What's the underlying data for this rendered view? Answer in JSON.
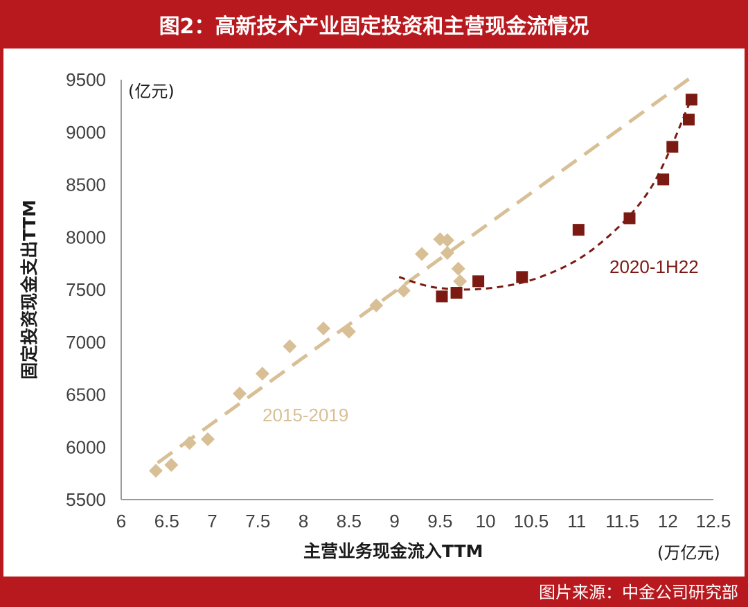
{
  "header": {
    "title": "图2：高新技术产业固定投资和主营现金流情况"
  },
  "footer": {
    "source": "图片来源：中金公司研究部"
  },
  "colors": {
    "frame": "#b8191e",
    "series1": "#d8bf95",
    "series2": "#7b1a12",
    "axis": "#9a9a9a",
    "text": "#404040"
  },
  "chart_data": {
    "type": "scatter",
    "title": "高新技术产业固定投资和主营现金流情况",
    "xlabel": "主营业务现金流入TTM",
    "ylabel": "固定投资现金支出TTM",
    "x_unit": "(万亿元)",
    "y_unit": "(亿元)",
    "xlim": [
      6,
      12.5
    ],
    "ylim": [
      5500,
      9500
    ],
    "x_ticks": [
      "6",
      "6.5",
      "7",
      "7.5",
      "8",
      "8.5",
      "9",
      "9.5",
      "10",
      "10.5",
      "11",
      "11.5",
      "12",
      "12.5"
    ],
    "y_ticks": [
      "5500",
      "6000",
      "6500",
      "7000",
      "7500",
      "8000",
      "8500",
      "9000",
      "9500"
    ],
    "series": [
      {
        "name": "2015-2019",
        "marker": "diamond",
        "points": [
          [
            6.38,
            5775
          ],
          [
            6.55,
            5830
          ],
          [
            6.75,
            6040
          ],
          [
            6.95,
            6075
          ],
          [
            7.3,
            6510
          ],
          [
            7.55,
            6700
          ],
          [
            7.85,
            6960
          ],
          [
            8.22,
            7130
          ],
          [
            8.5,
            7100
          ],
          [
            8.8,
            7350
          ],
          [
            9.1,
            7490
          ],
          [
            9.3,
            7840
          ],
          [
            9.5,
            7980
          ],
          [
            9.58,
            7970
          ],
          [
            9.58,
            7850
          ],
          [
            9.7,
            7700
          ],
          [
            9.72,
            7580
          ]
        ],
        "trend": {
          "kind": "linear",
          "from": [
            6.4,
            5850
          ],
          "to": [
            12.3,
            9550
          ]
        }
      },
      {
        "name": "2020-1H22",
        "marker": "square",
        "points": [
          [
            9.52,
            7435
          ],
          [
            9.68,
            7470
          ],
          [
            9.92,
            7580
          ],
          [
            10.4,
            7620
          ],
          [
            11.02,
            8070
          ],
          [
            11.58,
            8180
          ],
          [
            11.95,
            8550
          ],
          [
            12.05,
            8860
          ],
          [
            12.23,
            9120
          ],
          [
            12.26,
            9310
          ]
        ],
        "trend": {
          "kind": "poly2",
          "x_range": [
            9.05,
            12.25
          ],
          "knots": [
            [
              9.05,
              7620
            ],
            [
              9.45,
              7520
            ],
            [
              10.0,
              7510
            ],
            [
              10.6,
              7620
            ],
            [
              11.2,
              7900
            ],
            [
              11.8,
              8450
            ],
            [
              12.25,
              9300
            ]
          ]
        }
      }
    ]
  }
}
